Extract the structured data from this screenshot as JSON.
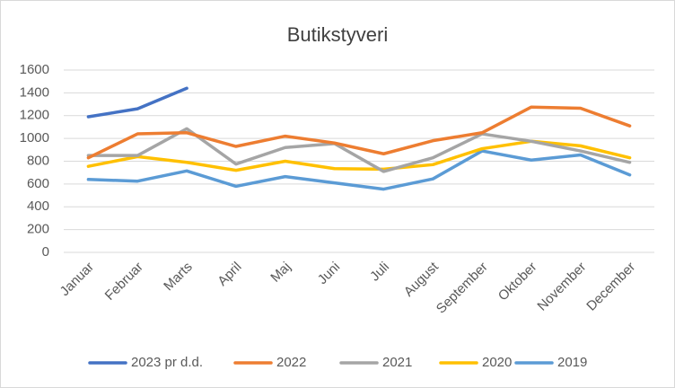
{
  "chart_data": {
    "type": "line",
    "title": "Butikstyveri",
    "categories": [
      "Januar",
      "Februar",
      "Marts",
      "April",
      "Maj",
      "Juni",
      "Juli",
      "August",
      "September",
      "Oktober",
      "November",
      "December"
    ],
    "series": [
      {
        "name": "2023 pr d.d.",
        "color": "#4472c4",
        "values": [
          1190,
          1260,
          1440,
          null,
          null,
          null,
          null,
          null,
          null,
          null,
          null,
          null
        ]
      },
      {
        "name": "2022",
        "color": "#ed7d31",
        "values": [
          830,
          1040,
          1050,
          930,
          1020,
          960,
          865,
          980,
          1050,
          1275,
          1265,
          1110
        ]
      },
      {
        "name": "2021",
        "color": "#a5a5a5",
        "values": [
          850,
          850,
          1085,
          775,
          920,
          955,
          710,
          830,
          1040,
          975,
          890,
          790
        ]
      },
      {
        "name": "2020",
        "color": "#ffc000",
        "values": [
          755,
          840,
          790,
          720,
          800,
          735,
          730,
          770,
          910,
          975,
          935,
          830
        ]
      },
      {
        "name": "2019",
        "color": "#5b9bd5",
        "values": [
          640,
          625,
          715,
          580,
          665,
          610,
          555,
          645,
          890,
          810,
          855,
          680
        ]
      }
    ],
    "ylim": [
      0,
      1600
    ],
    "yticks": [
      0,
      200,
      400,
      600,
      800,
      1000,
      1200,
      1400,
      1600
    ],
    "grid": true,
    "legend": "bottom"
  }
}
